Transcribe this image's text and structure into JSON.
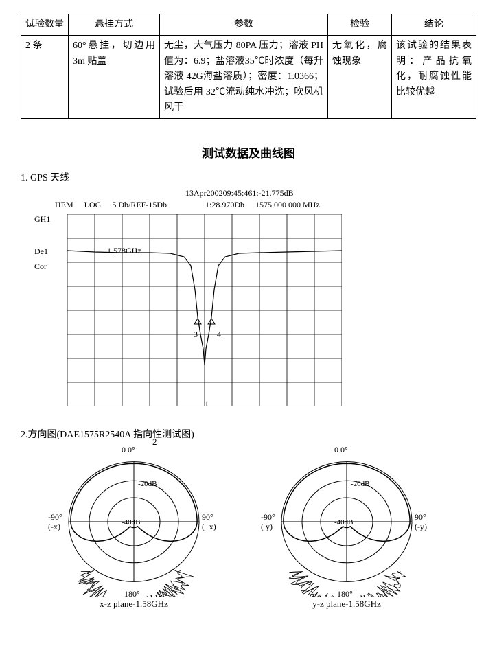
{
  "table": {
    "headers": [
      "试验数量",
      "悬挂方式",
      "参数",
      "检验",
      "结论"
    ],
    "row": {
      "qty": "2 条",
      "hang": "60°悬挂，切边用 3m 贴盖",
      "param": "无尘，大气压力 80PA 压力；溶液 PH 值为：6.9；盐溶液35℃时浓度（每升溶液 42G海盐溶质）；密度：1.0366；试验后用 32℃流动纯水冲洗；吹风机风干",
      "insp": "无氧化，腐蚀现象",
      "concl": "该试验的结果表明：产品抗氧化，耐腐蚀性能比较优越"
    }
  },
  "section_title": "测试数据及曲线图",
  "gps": {
    "item_title": "1.  GPS 天线",
    "top_line": "13Apr200209:45:461:-21.775dB",
    "hdr_a": "HEM",
    "hdr_b": "LOG",
    "hdr_c": "5 Db/REF-15Db",
    "hdr_d": "1:28.970Db",
    "hdr_e": "1575.000 000 MHz",
    "left_labels": [
      "GH1",
      "De1",
      "Cor"
    ],
    "freq_label": "1.578GHz",
    "marker1": "1",
    "marker3": "3",
    "marker4": "4",
    "grid": {
      "cols": 10,
      "rows": 8,
      "color": "#000",
      "bg": "#fff"
    },
    "curve": {
      "color": "#000000",
      "stroke_width": 1.2,
      "points": [
        [
          0,
          53
        ],
        [
          40,
          55
        ],
        [
          80,
          56
        ],
        [
          120,
          56
        ],
        [
          150,
          57
        ],
        [
          170,
          62
        ],
        [
          180,
          75
        ],
        [
          186,
          110
        ],
        [
          190,
          150
        ],
        [
          194,
          175
        ],
        [
          198,
          196
        ],
        [
          200,
          220
        ],
        [
          202,
          196
        ],
        [
          206,
          175
        ],
        [
          210,
          150
        ],
        [
          214,
          110
        ],
        [
          220,
          75
        ],
        [
          230,
          62
        ],
        [
          250,
          57
        ],
        [
          280,
          56
        ],
        [
          320,
          55
        ],
        [
          360,
          54
        ],
        [
          400,
          53
        ]
      ]
    }
  },
  "polar": {
    "item_title": "2.方向图(DAE1575R2540A 指向性测试图)",
    "stray_2": "2",
    "diagram": {
      "outer_r": 95,
      "rings": [
        95,
        65,
        38
      ],
      "ring_labels": [
        "",
        "-20dB",
        "-40dB"
      ],
      "stroke": "#000000",
      "fill": "#ffffff"
    },
    "left": {
      "caption": "x-z plane-1.58GHz",
      "top": "0    0°",
      "left1": "-90°",
      "left2": "(-x)",
      "right1": "90°",
      "right2": "(+x)",
      "bottom": "180°"
    },
    "right": {
      "caption": "y-z plane-1.58GHz",
      "top": "0    0°",
      "left1": "-90°",
      "left2": "( y)",
      "right1": "90°",
      "right2": "(-y)",
      "bottom": "180°"
    }
  }
}
